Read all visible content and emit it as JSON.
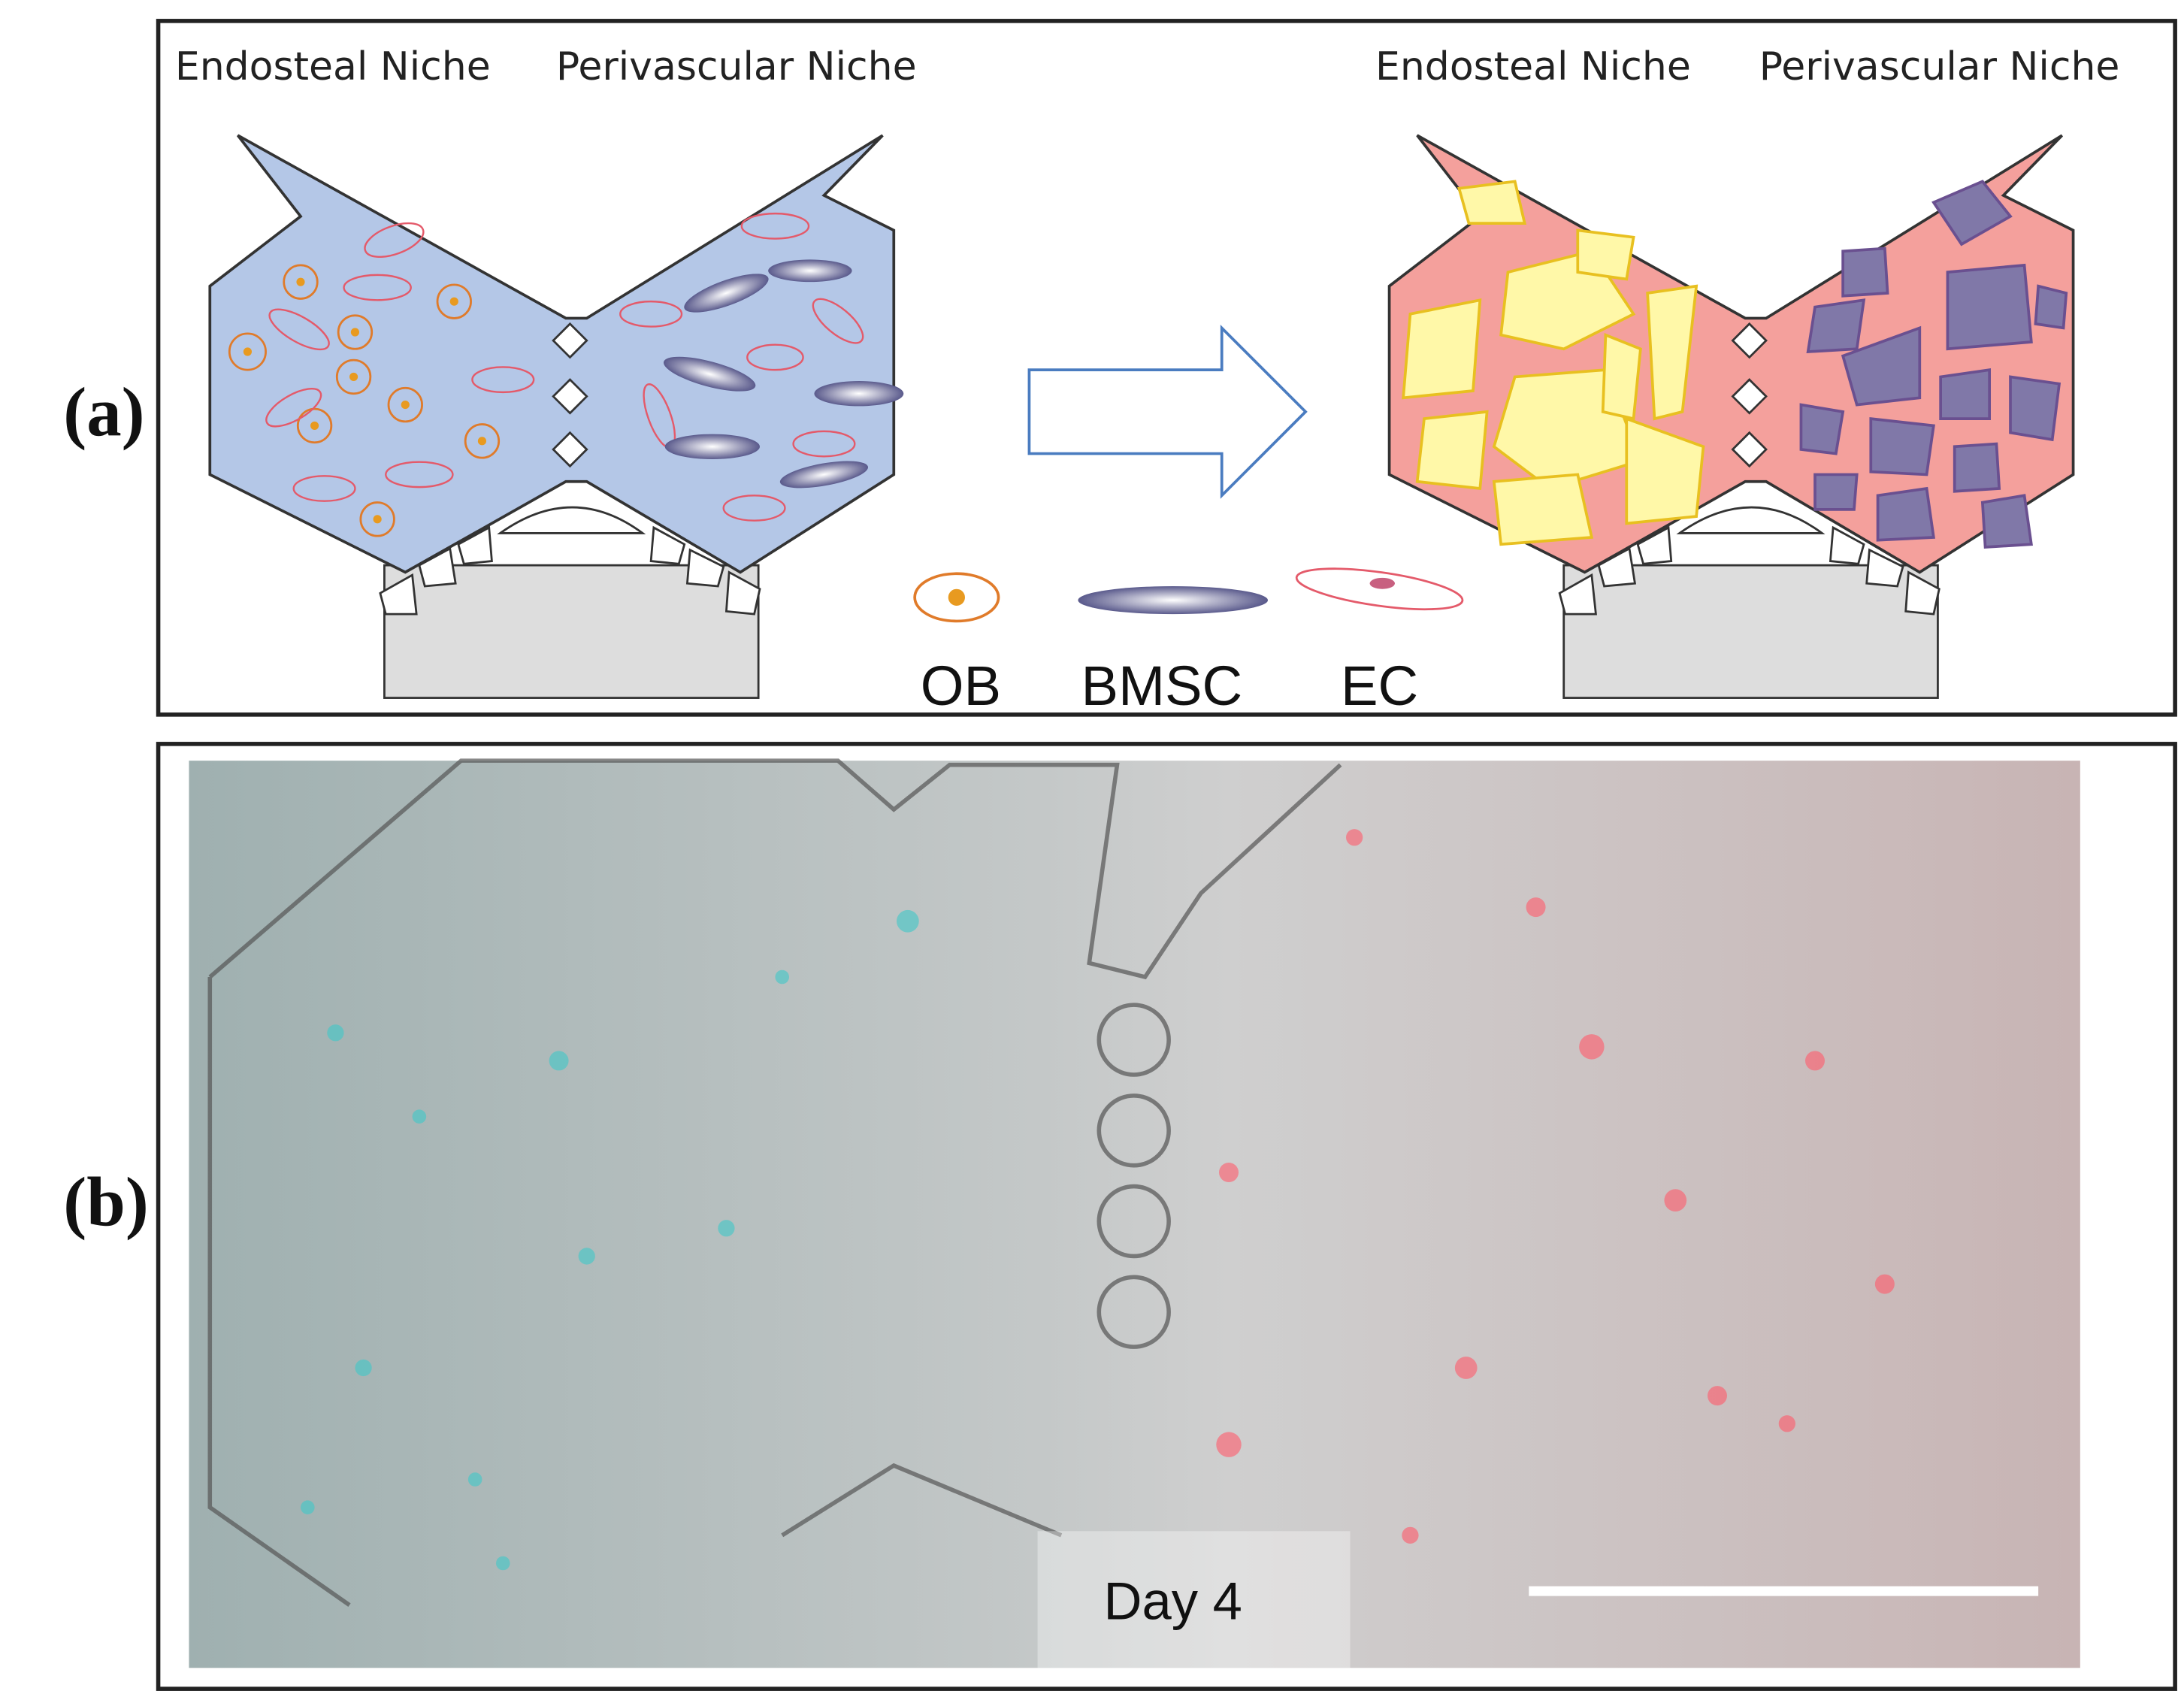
{
  "panel_a": {
    "label": "(a)",
    "left_chip": {
      "endosteal": "Endosteal Niche",
      "perivascular": "Perivascular Niche"
    },
    "right_chip": {
      "endosteal": "Endosteal Niche",
      "perivascular": "Perivascular Niche"
    },
    "legend": [
      "OB",
      "BMSC",
      "EC"
    ]
  },
  "panel_b": {
    "label": "(b)",
    "timepoint": "Day 4"
  }
}
